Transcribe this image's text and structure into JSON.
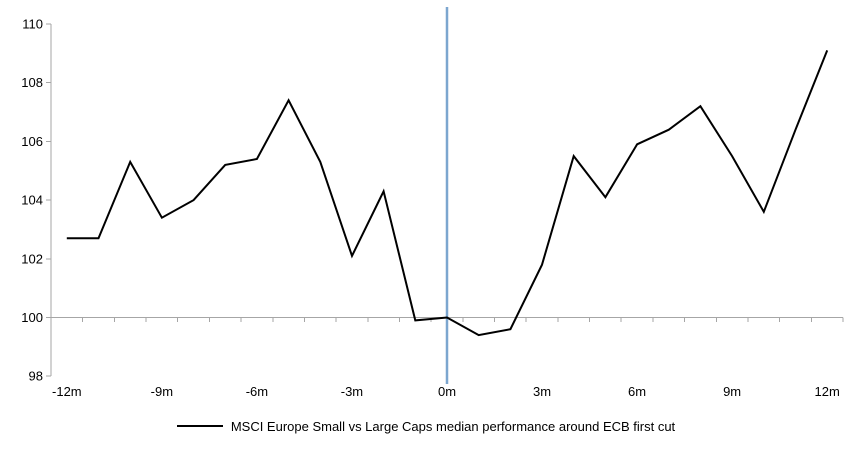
{
  "chart_data": {
    "type": "line",
    "title": "",
    "x_categories": [
      "-12m",
      "-11m",
      "-10m",
      "-9m",
      "-8m",
      "-7m",
      "-6m",
      "-5m",
      "-4m",
      "-3m",
      "-2m",
      "-1m",
      "0m",
      "1m",
      "2m",
      "3m",
      "4m",
      "5m",
      "6m",
      "7m",
      "8m",
      "9m",
      "10m",
      "11m",
      "12m"
    ],
    "x_tick_labels": [
      "-12m",
      "-9m",
      "-6m",
      "-3m",
      "0m",
      "3m",
      "6m",
      "9m",
      "12m"
    ],
    "series": [
      {
        "name": "MSCI Europe Small vs Large Caps median performance around ECB first cut",
        "values": [
          102.7,
          102.7,
          105.3,
          103.4,
          104.0,
          105.2,
          105.4,
          107.4,
          105.3,
          102.1,
          104.3,
          99.9,
          100.0,
          99.4,
          99.6,
          101.8,
          105.5,
          104.1,
          105.9,
          106.4,
          107.2,
          105.5,
          103.6,
          106.4,
          109.1
        ]
      }
    ],
    "ylim": [
      98,
      110
    ],
    "y_ticks": [
      98,
      100,
      102,
      104,
      106,
      108,
      110
    ],
    "x_axis_crosses_at": 100,
    "event_line_x": "0m",
    "grid": "off",
    "legend_position": "bottom",
    "colors": {
      "series": "#000000",
      "event_line": "#7CA6CF",
      "axis": "#A6A6A6",
      "text": "#000000"
    }
  }
}
